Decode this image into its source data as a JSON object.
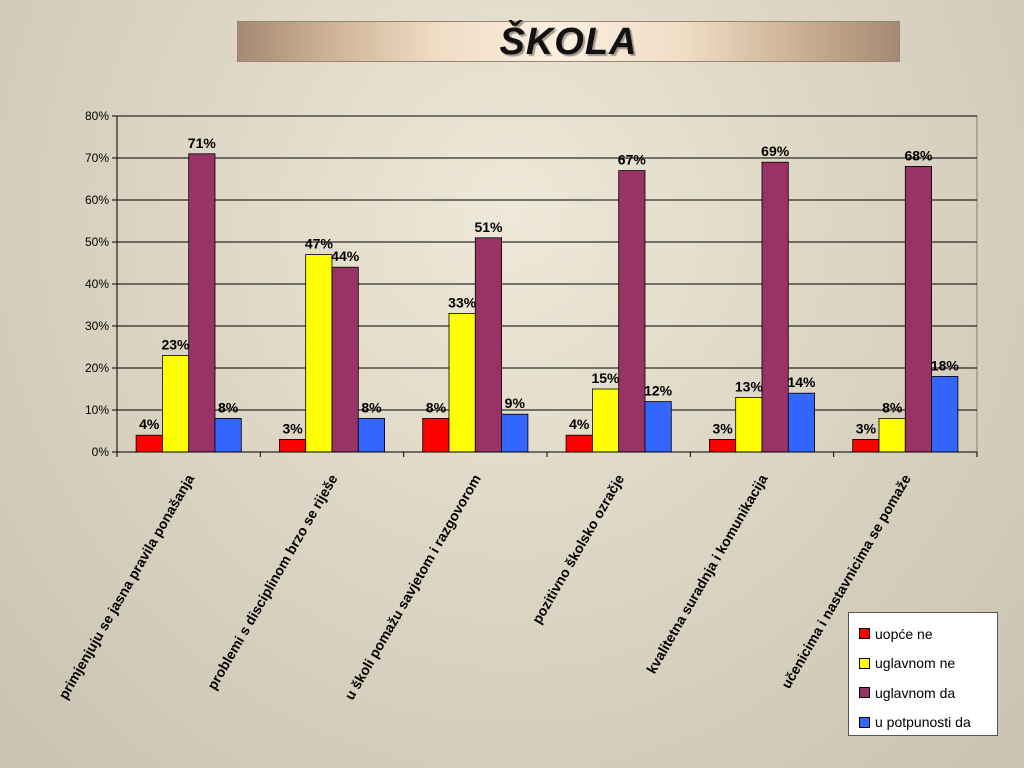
{
  "title": "ŠKOLA",
  "chart_data": {
    "type": "bar",
    "categories": [
      "primjenjuju se jasna pravila ponašanja",
      "problemi s disciplinom brzo se riješe",
      "u školi pomažu savjetom i razgovorom",
      "pozitivno školsko ozračje",
      "kvalitetna suradnja i komunikacija",
      "učenicima i nastavnicima se pomaže"
    ],
    "series": [
      {
        "name": "uopće ne",
        "color": "#ff0000",
        "values": [
          4,
          3,
          8,
          4,
          3,
          3
        ]
      },
      {
        "name": "uglavnom ne",
        "color": "#ffff00",
        "values": [
          23,
          47,
          33,
          15,
          13,
          8
        ]
      },
      {
        "name": "uglavnom da",
        "color": "#993366",
        "values": [
          71,
          44,
          51,
          67,
          69,
          68
        ]
      },
      {
        "name": "u potpunosti da",
        "color": "#3366ff",
        "values": [
          8,
          8,
          9,
          12,
          14,
          18
        ]
      }
    ],
    "value_suffix": "%",
    "ylim": [
      0,
      80
    ],
    "yticks": [
      "0%",
      "10%",
      "20%",
      "30%",
      "40%",
      "50%",
      "60%",
      "70%",
      "80%"
    ],
    "grid": true,
    "legend_position": "bottom-right"
  }
}
